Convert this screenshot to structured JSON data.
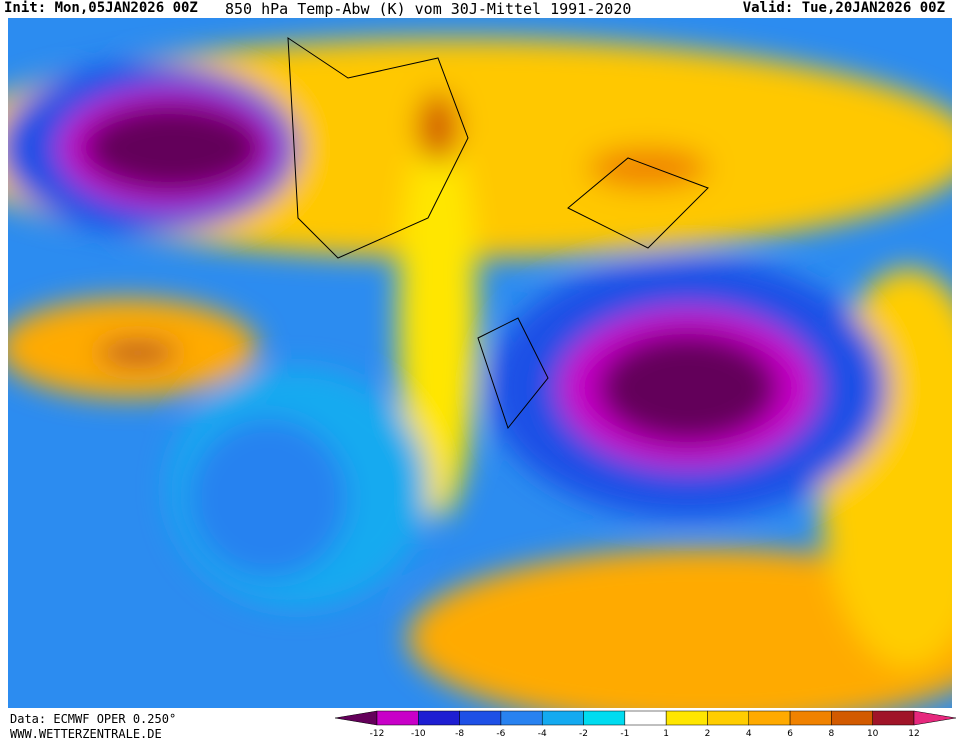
{
  "header": {
    "init": "Init: Mon,05JAN2026 00Z",
    "title": "850 hPa Temp-Abw (K) vom 30J-Mittel 1991-2020",
    "valid": "Valid: Tue,20JAN2026 00Z"
  },
  "footer": {
    "data_source": "Data: ECMWF OPER 0.250°",
    "website": "WWW.WETTERZENTRALE.DE"
  },
  "legend": {
    "ticks": [
      -12,
      -10,
      -8,
      -6,
      -4,
      -2,
      -1,
      1,
      2,
      4,
      6,
      8,
      10,
      12
    ],
    "colors": [
      "#64005a",
      "#c800c8",
      "#1e1ed2",
      "#1e50e6",
      "#2882f0",
      "#14aaf0",
      "#00dcf0",
      "#ffffff",
      "#ffe600",
      "#ffcd00",
      "#ffaa00",
      "#f08200",
      "#d25a00",
      "#a01428",
      "#e6287d"
    ]
  }
}
